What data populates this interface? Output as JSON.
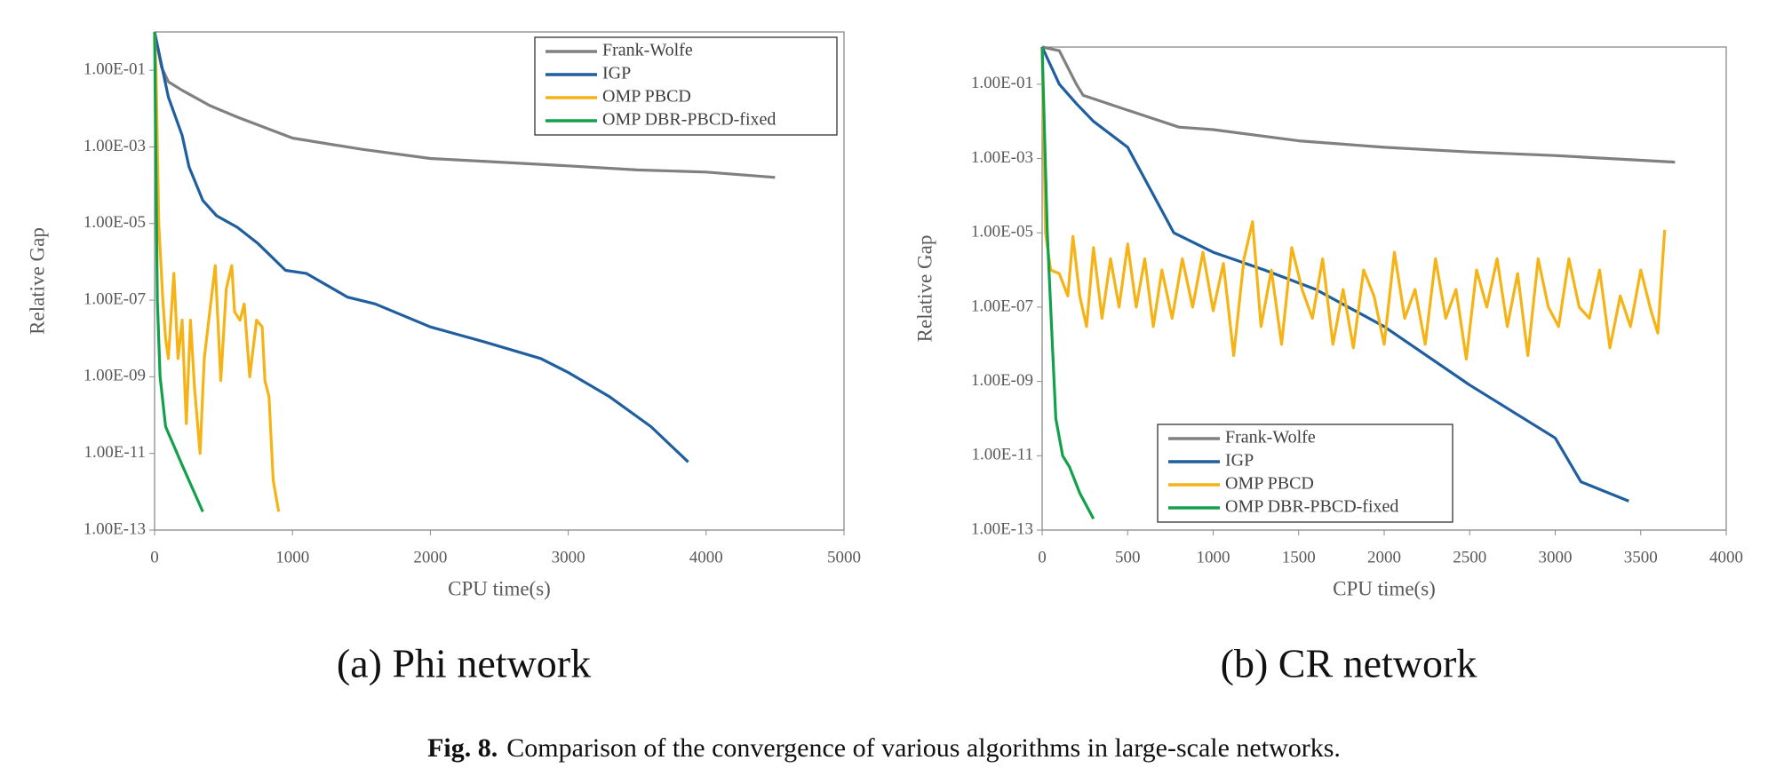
{
  "chart_data": [
    {
      "type": "line",
      "subtitle": "(a) Phi network",
      "xlabel": "CPU time(s)",
      "ylabel": "Relative Gap",
      "log_y": true,
      "grid": false,
      "legend": "upper right",
      "xlim": [
        0,
        5000
      ],
      "xticks": [
        0,
        1000,
        2000,
        3000,
        4000,
        5000
      ],
      "ylim": [
        1e-13,
        1
      ],
      "yticks": [
        {
          "value": 1e-13,
          "label": "1.00E-13"
        },
        {
          "value": 1e-11,
          "label": "1.00E-11"
        },
        {
          "value": 1e-09,
          "label": "1.00E-09"
        },
        {
          "value": 1e-07,
          "label": "1.00E-07"
        },
        {
          "value": 1e-05,
          "label": "1.00E-05"
        },
        {
          "value": 0.001,
          "label": "1.00E-03"
        },
        {
          "value": 0.1,
          "label": "1.00E-01"
        }
      ],
      "series": [
        {
          "name": "Frank-Wolfe",
          "color": "#808080",
          "x": [
            0,
            50,
            100,
            200,
            400,
            600,
            1000,
            1500,
            2000,
            2500,
            3000,
            3500,
            4000,
            4500
          ],
          "values": [
            1,
            0.12,
            0.05,
            0.03,
            0.012,
            0.006,
            0.0017,
            0.00087,
            0.0005,
            0.0004,
            0.00032,
            0.00025,
            0.00022,
            0.00016
          ]
        },
        {
          "name": "IGP",
          "color": "#1f5fa0",
          "x": [
            0,
            100,
            200,
            250,
            350,
            450,
            600,
            750,
            950,
            1100,
            1400,
            1600,
            2000,
            2400,
            2800,
            3000,
            3300,
            3600,
            3870
          ],
          "values": [
            1,
            0.02,
            0.002,
            0.0003,
            4e-05,
            1.6e-05,
            8e-06,
            3e-06,
            6e-07,
            5e-07,
            1.2e-07,
            8e-08,
            2e-08,
            8e-09,
            3e-09,
            1.3e-09,
            3e-10,
            5e-11,
            6e-12
          ]
        },
        {
          "name": "OMP PBCD",
          "color": "#f5b316",
          "x": [
            0,
            10,
            30,
            60,
            80,
            100,
            140,
            170,
            200,
            230,
            260,
            290,
            330,
            360,
            400,
            440,
            480,
            520,
            560,
            580,
            620,
            650,
            690,
            740,
            780,
            800,
            830,
            860,
            900
          ],
          "values": [
            1,
            0.1,
            1e-05,
            1e-07,
            1e-08,
            3e-09,
            5e-07,
            3e-09,
            3e-08,
            6e-11,
            3e-08,
            5e-10,
            1e-11,
            3e-09,
            5e-08,
            8e-07,
            8e-10,
            2e-07,
            8e-07,
            5e-08,
            3e-08,
            8e-08,
            1e-09,
            3e-08,
            2e-08,
            8e-10,
            3e-10,
            2e-12,
            3e-13
          ]
        },
        {
          "name": "OMP DBR-PBCD-fixed",
          "color": "#12a04a",
          "x": [
            0,
            20,
            40,
            80,
            200,
            350
          ],
          "values": [
            1,
            1e-07,
            1e-09,
            5e-11,
            5e-12,
            3e-13
          ]
        }
      ]
    },
    {
      "type": "line",
      "subtitle": "(b) CR network",
      "xlabel": "CPU time(s)",
      "ylabel": "Relative Gap",
      "log_y": true,
      "grid": false,
      "legend": "lower left",
      "xlim": [
        0,
        4000
      ],
      "xticks": [
        0,
        500,
        1000,
        1500,
        2000,
        2500,
        3000,
        3500,
        4000
      ],
      "ylim": [
        1e-13,
        1
      ],
      "yticks": [
        {
          "value": 1e-13,
          "label": "1.00E-13"
        },
        {
          "value": 1e-11,
          "label": "1.00E-11"
        },
        {
          "value": 1e-09,
          "label": "1.00E-09"
        },
        {
          "value": 1e-07,
          "label": "1.00E-07"
        },
        {
          "value": 1e-05,
          "label": "1.00E-05"
        },
        {
          "value": 0.001,
          "label": "1.00E-03"
        },
        {
          "value": 0.1,
          "label": "1.00E-01"
        }
      ],
      "series": [
        {
          "name": "Frank-Wolfe",
          "color": "#808080",
          "x": [
            0,
            100,
            200,
            240,
            500,
            800,
            1000,
            1500,
            2000,
            2500,
            3000,
            3500,
            3700
          ],
          "values": [
            1,
            0.8,
            0.1,
            0.05,
            0.02,
            0.007,
            0.006,
            0.003,
            0.002,
            0.0015,
            0.0012,
            0.0009,
            0.0008
          ]
        },
        {
          "name": "IGP",
          "color": "#1f5fa0",
          "x": [
            0,
            100,
            200,
            300,
            500,
            770,
            1000,
            1300,
            1600,
            2000,
            2500,
            3000,
            3150,
            3430
          ],
          "values": [
            1,
            0.1,
            0.03,
            0.01,
            0.002,
            1e-05,
            3e-06,
            1e-06,
            3e-07,
            3e-08,
            8e-10,
            3e-11,
            2e-12,
            6e-13
          ]
        },
        {
          "name": "OMP PBCD",
          "color": "#f5b316",
          "x": [
            0,
            20,
            50,
            100,
            150,
            180,
            220,
            260,
            300,
            350,
            400,
            450,
            500,
            550,
            600,
            650,
            700,
            760,
            820,
            880,
            940,
            1000,
            1060,
            1120,
            1180,
            1230,
            1280,
            1340,
            1400,
            1460,
            1520,
            1580,
            1640,
            1700,
            1760,
            1820,
            1880,
            1940,
            2000,
            2060,
            2120,
            2180,
            2240,
            2300,
            2360,
            2420,
            2480,
            2540,
            2600,
            2660,
            2720,
            2780,
            2840,
            2900,
            2960,
            3020,
            3080,
            3140,
            3200,
            3260,
            3320,
            3380,
            3440,
            3500,
            3560,
            3600,
            3640
          ],
          "values": [
            1,
            1e-05,
            1e-06,
            8e-07,
            2e-07,
            8e-06,
            2e-07,
            3e-08,
            4e-06,
            5e-08,
            2e-06,
            1e-07,
            5e-06,
            1e-07,
            2e-06,
            3e-08,
            1e-06,
            5e-08,
            2e-06,
            1e-07,
            3e-06,
            8e-08,
            1.5e-06,
            5e-09,
            2e-06,
            2e-05,
            3e-08,
            1e-06,
            1e-08,
            4e-06,
            3e-07,
            5e-08,
            2e-06,
            1e-08,
            3e-07,
            8e-09,
            1e-06,
            2e-07,
            1e-08,
            3e-06,
            5e-08,
            3e-07,
            1e-08,
            2e-06,
            5e-08,
            3e-07,
            4e-09,
            1e-06,
            1e-07,
            2e-06,
            3e-08,
            8e-07,
            5e-09,
            2e-06,
            1e-07,
            3e-08,
            2e-06,
            1e-07,
            5e-08,
            1e-06,
            8e-09,
            2e-07,
            3e-08,
            1e-06,
            8e-08,
            2e-08,
            1.2e-05
          ]
        },
        {
          "name": "OMP DBR-PBCD-fixed",
          "color": "#12a04a",
          "x": [
            0,
            30,
            60,
            80,
            120,
            160,
            220,
            300
          ],
          "values": [
            1,
            1e-05,
            1e-08,
            1e-10,
            1e-11,
            5e-12,
            1e-12,
            2e-13
          ]
        }
      ]
    }
  ],
  "figure_caption": {
    "label": "Fig. 8.",
    "text": "Comparison of the convergence of various algorithms in large-scale networks."
  }
}
